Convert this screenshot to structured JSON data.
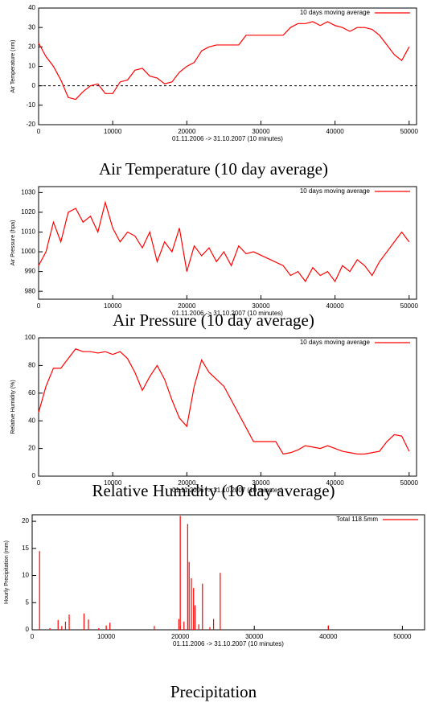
{
  "chart_data": [
    {
      "type": "line",
      "title": "Air Temperature (10 day average)",
      "x_label": "01.11.2006 -> 31.10.2007 (10 minutes)",
      "y_label": "Air Temperature (nm)",
      "x": [
        0,
        1000,
        2000,
        3000,
        4000,
        5000,
        6000,
        7000,
        8000,
        9000,
        10000,
        11000,
        12000,
        13000,
        14000,
        15000,
        16000,
        17000,
        18000,
        19000,
        20000,
        21000,
        22000,
        23000,
        24000,
        25000,
        26000,
        27000,
        28000,
        29000,
        30000,
        31000,
        32000,
        33000,
        34000,
        35000,
        36000,
        37000,
        38000,
        39000,
        40000,
        41000,
        42000,
        43000,
        44000,
        45000,
        46000,
        47000,
        48000,
        49000,
        50000
      ],
      "series": [
        {
          "name": "10 days moving average",
          "color": "#ff0000",
          "values": [
            22,
            15,
            10,
            3,
            -6,
            -7,
            -3,
            0,
            1,
            -4,
            -4,
            2,
            3,
            8,
            9,
            5,
            4,
            1,
            2,
            7,
            10,
            12,
            18,
            20,
            21,
            21,
            21,
            21,
            26,
            26,
            26,
            26,
            26,
            26,
            30,
            32,
            32,
            33,
            31,
            33,
            31,
            30,
            28,
            30,
            30,
            29,
            26,
            21,
            16,
            13,
            20
          ]
        }
      ],
      "xlim": [
        0,
        51000
      ],
      "ylim": [
        -20,
        40
      ],
      "xticks": [
        0,
        10000,
        20000,
        30000,
        40000,
        50000
      ],
      "yticks": [
        -20,
        -10,
        0,
        10,
        20,
        30,
        40
      ],
      "zero_line": true,
      "legend": "upper right"
    },
    {
      "type": "line",
      "title": "Air Pressure (10 day average)",
      "x_label": "01.11.2006 -> 31.10.2007 (10 minutes)",
      "y_label": "Air Pressure (hpa)",
      "x": [
        0,
        1000,
        2000,
        3000,
        4000,
        5000,
        6000,
        7000,
        8000,
        9000,
        10000,
        11000,
        12000,
        13000,
        14000,
        15000,
        16000,
        17000,
        18000,
        19000,
        20000,
        21000,
        22000,
        23000,
        24000,
        25000,
        26000,
        27000,
        28000,
        29000,
        33000,
        34000,
        35000,
        36000,
        37000,
        38000,
        39000,
        40000,
        41000,
        42000,
        43000,
        44000,
        45000,
        46000,
        47000,
        48000,
        49000,
        50000
      ],
      "series": [
        {
          "name": "10 days moving average",
          "color": "#ff0000",
          "values": [
            993,
            1000,
            1015,
            1005,
            1020,
            1022,
            1015,
            1018,
            1010,
            1025,
            1012,
            1005,
            1010,
            1008,
            1002,
            1010,
            995,
            1005,
            1000,
            1012,
            990,
            1003,
            998,
            1002,
            995,
            1000,
            993,
            1003,
            999,
            1000,
            993,
            988,
            990,
            985,
            992,
            988,
            990,
            985,
            993,
            990,
            996,
            993,
            988,
            995,
            1000,
            1005,
            1010,
            1005
          ]
        }
      ],
      "xlim": [
        0,
        51000
      ],
      "ylim": [
        976,
        1033
      ],
      "xticks": [
        0,
        10000,
        20000,
        30000,
        40000,
        50000
      ],
      "yticks": [
        980,
        990,
        1000,
        1010,
        1020,
        1030
      ],
      "legend": "upper right"
    },
    {
      "type": "line",
      "title": "Relative Humidity (10 day average)",
      "x_label": "01.11.2006 -> 31.10.2007 (10 minutes)",
      "y_label": "Relative Humidity (%)",
      "x": [
        0,
        1000,
        2000,
        3000,
        4000,
        5000,
        6000,
        7000,
        8000,
        9000,
        10000,
        11000,
        12000,
        13000,
        14000,
        15000,
        16000,
        17000,
        18000,
        19000,
        20000,
        21000,
        22000,
        23000,
        24000,
        25000,
        26000,
        27000,
        28000,
        29000,
        30000,
        31000,
        32000,
        33000,
        34000,
        35000,
        36000,
        37000,
        38000,
        39000,
        40000,
        41000,
        42000,
        43000,
        44000,
        45000,
        46000,
        47000,
        48000,
        49000,
        50000
      ],
      "series": [
        {
          "name": "10 days moving average",
          "color": "#ff0000",
          "values": [
            46,
            65,
            78,
            78,
            85,
            92,
            90,
            90,
            89,
            90,
            88,
            90,
            85,
            75,
            62,
            72,
            80,
            70,
            55,
            42,
            36,
            65,
            84,
            75,
            70,
            65,
            55,
            45,
            35,
            25,
            25,
            25,
            25,
            16,
            17,
            19,
            22,
            21,
            20,
            22,
            20,
            18,
            17,
            16,
            16,
            17,
            18,
            25,
            30,
            29,
            18
          ]
        }
      ],
      "xlim": [
        0,
        51000
      ],
      "ylim": [
        0,
        100
      ],
      "xticks": [
        0,
        10000,
        20000,
        30000,
        40000,
        50000
      ],
      "yticks": [
        0,
        20,
        40,
        60,
        80,
        100
      ],
      "legend": "upper right"
    },
    {
      "type": "impulse",
      "title": "Precipitation",
      "x_label": "01.11.2006 -> 31.10.2007 (10 minutes)",
      "y_label": "Hourly Precipitation (mm)",
      "x": [
        1000,
        2400,
        3500,
        4000,
        4500,
        5000,
        7000,
        7600,
        9000,
        10000,
        10500,
        16500,
        19800,
        20000,
        20500,
        21000,
        21200,
        21500,
        21800,
        22000,
        22500,
        23000,
        24000,
        24500,
        25400,
        40000
      ],
      "series": [
        {
          "name": "Total 118.5mm",
          "color": "#ff0000",
          "values": [
            14.5,
            0.3,
            1.8,
            0.7,
            1.5,
            2.8,
            3,
            1.9,
            0.3,
            0.8,
            1.3,
            0.7,
            2,
            21,
            1.5,
            19.5,
            12.5,
            9.5,
            7.7,
            4.5,
            1,
            8.5,
            0.5,
            2,
            10.5,
            0.8
          ]
        }
      ],
      "xlim": [
        0,
        53000
      ],
      "ylim": [
        0,
        21.2
      ],
      "xticks": [
        0,
        10000,
        20000,
        30000,
        40000,
        50000
      ],
      "yticks": [
        0,
        5,
        10,
        15,
        20
      ],
      "legend": "upper right"
    }
  ]
}
